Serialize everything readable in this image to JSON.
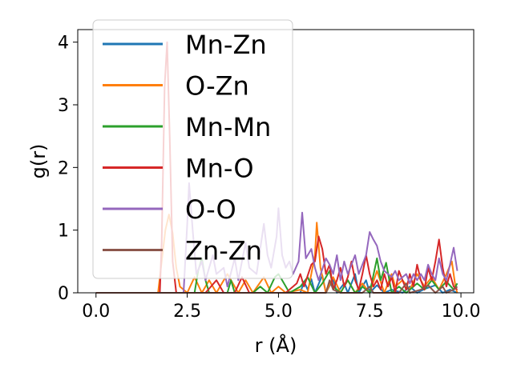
{
  "chart_data": {
    "type": "line",
    "xlabel": "r (Å)",
    "ylabel": "g(r)",
    "xlim": [
      -0.5,
      10.35
    ],
    "ylim": [
      0,
      4.2
    ],
    "xticks": [
      0.0,
      2.5,
      5.0,
      7.5,
      10.0
    ],
    "xtick_labels": [
      "0.0",
      "2.5",
      "5.0",
      "7.5",
      "10.0"
    ],
    "yticks": [
      0,
      1,
      2,
      3,
      4
    ],
    "ytick_labels": [
      "0",
      "1",
      "2",
      "3",
      "4"
    ],
    "grid": false,
    "legend_position": "upper-left",
    "series": [
      {
        "name": "Mn-Zn",
        "color": "#1f77b4",
        "points": [
          [
            0,
            0
          ],
          [
            5.6,
            0
          ],
          [
            5.7,
            0.18
          ],
          [
            5.8,
            0.05
          ],
          [
            5.9,
            0.22
          ],
          [
            6.0,
            0
          ],
          [
            6.2,
            0.28
          ],
          [
            6.3,
            0
          ],
          [
            6.5,
            0.22
          ],
          [
            6.6,
            0
          ],
          [
            6.8,
            0.15
          ],
          [
            6.9,
            0
          ],
          [
            7.1,
            0.3
          ],
          [
            7.2,
            0
          ],
          [
            7.4,
            0.2
          ],
          [
            7.5,
            0
          ],
          [
            7.7,
            0.12
          ],
          [
            7.9,
            0
          ],
          [
            8.1,
            0.05
          ],
          [
            8.4,
            0
          ],
          [
            8.6,
            0.1
          ],
          [
            8.8,
            0
          ],
          [
            9.0,
            0.06
          ],
          [
            9.3,
            0.12
          ],
          [
            9.5,
            0
          ],
          [
            9.7,
            0.05
          ],
          [
            9.9,
            0
          ]
        ]
      },
      {
        "name": "O-Zn",
        "color": "#ff7f0e",
        "points": [
          [
            0,
            0
          ],
          [
            1.7,
            0
          ],
          [
            1.8,
            0.5
          ],
          [
            1.9,
            1.0
          ],
          [
            2.0,
            1.25
          ],
          [
            2.1,
            0.95
          ],
          [
            2.2,
            0.4
          ],
          [
            2.3,
            0.1
          ],
          [
            2.5,
            0
          ],
          [
            2.7,
            0.25
          ],
          [
            2.9,
            0
          ],
          [
            3.1,
            0.2
          ],
          [
            3.3,
            0
          ],
          [
            3.6,
            0.3
          ],
          [
            3.9,
            0
          ],
          [
            4.1,
            0.2
          ],
          [
            4.3,
            0
          ],
          [
            4.6,
            0.25
          ],
          [
            4.8,
            0
          ],
          [
            5.0,
            0.1
          ],
          [
            5.2,
            0
          ],
          [
            5.6,
            0.05
          ],
          [
            5.8,
            0
          ],
          [
            6.0,
            0.6
          ],
          [
            6.05,
            1.12
          ],
          [
            6.15,
            0.4
          ],
          [
            6.3,
            0
          ],
          [
            6.5,
            0.25
          ],
          [
            6.7,
            0
          ],
          [
            6.9,
            0.2
          ],
          [
            7.1,
            0
          ],
          [
            7.3,
            0.15
          ],
          [
            7.5,
            0
          ],
          [
            7.7,
            0.35
          ],
          [
            7.9,
            0
          ],
          [
            8.1,
            0.3
          ],
          [
            8.2,
            0.1
          ],
          [
            8.4,
            0.2
          ],
          [
            8.6,
            0.05
          ],
          [
            8.8,
            0.3
          ],
          [
            9.0,
            0.1
          ],
          [
            9.2,
            0.25
          ],
          [
            9.4,
            0.05
          ],
          [
            9.6,
            0.3
          ],
          [
            9.75,
            0.5
          ],
          [
            9.85,
            0.1
          ],
          [
            9.9,
            0
          ]
        ]
      },
      {
        "name": "Mn-Mn",
        "color": "#2ca02c",
        "points": [
          [
            0,
            0
          ],
          [
            2.7,
            0
          ],
          [
            2.8,
            0.35
          ],
          [
            2.9,
            0.55
          ],
          [
            3.0,
            0.2
          ],
          [
            3.1,
            0
          ],
          [
            3.6,
            0
          ],
          [
            3.7,
            0.2
          ],
          [
            3.8,
            0
          ],
          [
            4.3,
            0
          ],
          [
            4.5,
            0.1
          ],
          [
            4.7,
            0
          ],
          [
            4.9,
            0.25
          ],
          [
            5.0,
            0.3
          ],
          [
            5.1,
            0.2
          ],
          [
            5.3,
            0
          ],
          [
            5.6,
            0.1
          ],
          [
            5.8,
            0.25
          ],
          [
            6.0,
            0
          ],
          [
            6.2,
            0.15
          ],
          [
            6.4,
            0.35
          ],
          [
            6.5,
            0.1
          ],
          [
            6.7,
            0
          ],
          [
            6.9,
            0.2
          ],
          [
            7.1,
            0
          ],
          [
            7.3,
            0.1
          ],
          [
            7.5,
            0
          ],
          [
            7.7,
            0.55
          ],
          [
            7.8,
            0.2
          ],
          [
            7.95,
            0.48
          ],
          [
            8.1,
            0
          ],
          [
            8.3,
            0.1
          ],
          [
            8.5,
            0
          ],
          [
            8.8,
            0.15
          ],
          [
            9.0,
            0.05
          ],
          [
            9.2,
            0.2
          ],
          [
            9.4,
            0.05
          ],
          [
            9.6,
            0.18
          ],
          [
            9.8,
            0.05
          ],
          [
            9.9,
            0.15
          ]
        ]
      },
      {
        "name": "Mn-O",
        "color": "#d62728",
        "points": [
          [
            0,
            0
          ],
          [
            1.75,
            0
          ],
          [
            1.8,
            0.8
          ],
          [
            1.88,
            3.3
          ],
          [
            1.95,
            4.0
          ],
          [
            2.02,
            2.5
          ],
          [
            2.1,
            0.5
          ],
          [
            2.2,
            0
          ],
          [
            3.0,
            0
          ],
          [
            3.3,
            0.2
          ],
          [
            3.5,
            0
          ],
          [
            3.8,
            0
          ],
          [
            4.0,
            0.25
          ],
          [
            4.2,
            0
          ],
          [
            5.2,
            0
          ],
          [
            5.5,
            0.15
          ],
          [
            5.6,
            0.3
          ],
          [
            5.7,
            0.1
          ],
          [
            5.9,
            0.45
          ],
          [
            6.0,
            0.5
          ],
          [
            6.1,
            0.9
          ],
          [
            6.2,
            0.7
          ],
          [
            6.3,
            0.3
          ],
          [
            6.4,
            0.45
          ],
          [
            6.5,
            0.05
          ],
          [
            6.6,
            0.2
          ],
          [
            6.7,
            0.4
          ],
          [
            6.8,
            0.1
          ],
          [
            6.9,
            0.25
          ],
          [
            7.0,
            0.5
          ],
          [
            7.1,
            0.2
          ],
          [
            7.2,
            0.05
          ],
          [
            7.3,
            0.3
          ],
          [
            7.4,
            0.6
          ],
          [
            7.5,
            0.3
          ],
          [
            7.6,
            0.1
          ],
          [
            7.7,
            0.2
          ],
          [
            7.8,
            0.05
          ],
          [
            7.9,
            0.3
          ],
          [
            8.0,
            0.1
          ],
          [
            8.1,
            0.25
          ],
          [
            8.2,
            0
          ],
          [
            8.3,
            0.35
          ],
          [
            8.4,
            0.2
          ],
          [
            8.5,
            0.05
          ],
          [
            8.6,
            0.3
          ],
          [
            8.7,
            0.1
          ],
          [
            8.8,
            0.45
          ],
          [
            8.9,
            0.2
          ],
          [
            9.0,
            0.05
          ],
          [
            9.1,
            0.4
          ],
          [
            9.2,
            0.2
          ],
          [
            9.3,
            0.5
          ],
          [
            9.4,
            0.85
          ],
          [
            9.5,
            0.4
          ],
          [
            9.6,
            0.1
          ],
          [
            9.7,
            0.3
          ],
          [
            9.8,
            0.1
          ],
          [
            9.9,
            0.05
          ]
        ]
      },
      {
        "name": "O-O",
        "color": "#9467bd",
        "points": [
          [
            0,
            0
          ],
          [
            2.4,
            0
          ],
          [
            2.5,
            1.1
          ],
          [
            2.55,
            1.75
          ],
          [
            2.65,
            1.0
          ],
          [
            2.75,
            0.3
          ],
          [
            2.9,
            0.5
          ],
          [
            3.0,
            0.2
          ],
          [
            3.2,
            0.6
          ],
          [
            3.3,
            0.3
          ],
          [
            3.5,
            0.4
          ],
          [
            3.6,
            0.1
          ],
          [
            3.8,
            0.55
          ],
          [
            3.9,
            0.2
          ],
          [
            4.1,
            0.8
          ],
          [
            4.2,
            0.4
          ],
          [
            4.4,
            0.3
          ],
          [
            4.6,
            1.1
          ],
          [
            4.7,
            0.6
          ],
          [
            4.8,
            0.4
          ],
          [
            4.95,
            0.9
          ],
          [
            5.0,
            1.35
          ],
          [
            5.1,
            0.6
          ],
          [
            5.2,
            0.4
          ],
          [
            5.3,
            0.5
          ],
          [
            5.4,
            0.3
          ],
          [
            5.55,
            0.5
          ],
          [
            5.65,
            1.28
          ],
          [
            5.75,
            0.55
          ],
          [
            5.9,
            0.7
          ],
          [
            6.0,
            0.4
          ],
          [
            6.1,
            0.2
          ],
          [
            6.3,
            0.55
          ],
          [
            6.4,
            0.45
          ],
          [
            6.5,
            0.3
          ],
          [
            6.6,
            0.6
          ],
          [
            6.7,
            0.2
          ],
          [
            6.8,
            0.5
          ],
          [
            6.9,
            0.3
          ],
          [
            7.0,
            0.45
          ],
          [
            7.1,
            0.6
          ],
          [
            7.2,
            0.3
          ],
          [
            7.3,
            0.45
          ],
          [
            7.4,
            0.6
          ],
          [
            7.5,
            0.97
          ],
          [
            7.6,
            0.85
          ],
          [
            7.7,
            0.75
          ],
          [
            7.8,
            0.5
          ],
          [
            7.9,
            0.35
          ],
          [
            8.0,
            0.3
          ],
          [
            8.1,
            0.25
          ],
          [
            8.2,
            0.35
          ],
          [
            8.3,
            0.2
          ],
          [
            8.5,
            0.3
          ],
          [
            8.6,
            0.15
          ],
          [
            8.7,
            0.3
          ],
          [
            8.8,
            0.2
          ],
          [
            8.9,
            0.3
          ],
          [
            9.0,
            0.2
          ],
          [
            9.1,
            0.45
          ],
          [
            9.2,
            0.3
          ],
          [
            9.3,
            0.2
          ],
          [
            9.4,
            0.55
          ],
          [
            9.5,
            0.3
          ],
          [
            9.6,
            0.2
          ],
          [
            9.7,
            0.45
          ],
          [
            9.8,
            0.72
          ],
          [
            9.9,
            0.35
          ]
        ]
      },
      {
        "name": "Zn-Zn",
        "color": "#8c564b",
        "points": [
          [
            0,
            0
          ],
          [
            6.3,
            0
          ],
          [
            6.4,
            0.2
          ],
          [
            6.5,
            0.05
          ],
          [
            6.7,
            0
          ],
          [
            7.3,
            0
          ],
          [
            7.5,
            0.1
          ],
          [
            7.6,
            0
          ],
          [
            8.3,
            0
          ],
          [
            8.5,
            0.15
          ],
          [
            8.6,
            0
          ],
          [
            8.9,
            0.05
          ],
          [
            9.1,
            0.12
          ],
          [
            9.3,
            0
          ],
          [
            9.5,
            0.1
          ],
          [
            9.6,
            0
          ],
          [
            9.8,
            0.05
          ],
          [
            9.9,
            0.1
          ]
        ]
      }
    ]
  }
}
